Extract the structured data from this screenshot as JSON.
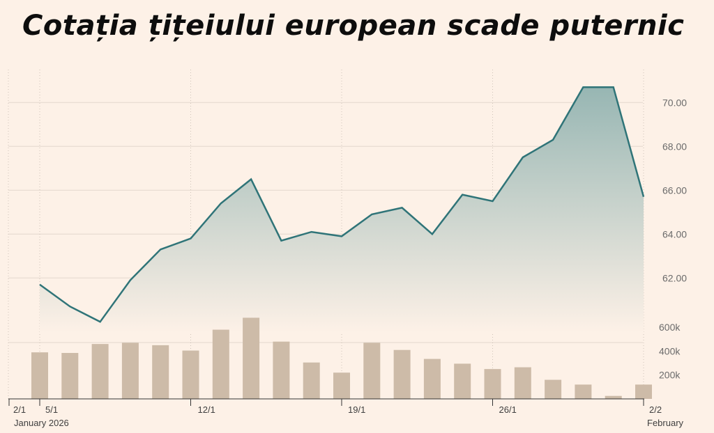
{
  "title": "Cotația țițeiului european scade puternic",
  "colors": {
    "background": "#fdf1e7",
    "line": "#2f7478",
    "area_top": "#97b6b3",
    "area_bottom": "#fdf1e7",
    "bars": "#cdbba8",
    "grid": "#e4d8cd"
  },
  "chart_data": [
    {
      "type": "area",
      "series": [
        {
          "x": [
            "5/1",
            "6/1",
            "7/1",
            "8/1",
            "9/1",
            "12/1",
            "13/1",
            "14/1",
            "15/1",
            "16/1",
            "19/1",
            "20/1",
            "21/1",
            "22/1",
            "23/1",
            "26/1",
            "27/1",
            "28/1",
            "29/1",
            "30/1",
            "2/2"
          ],
          "values": [
            61.7,
            60.7,
            60.0,
            61.9,
            63.3,
            63.8,
            65.4,
            66.5,
            63.7,
            64.1,
            63.9,
            64.9,
            65.2,
            64.0,
            65.8,
            65.5,
            67.5,
            68.3,
            70.7,
            70.7,
            65.7
          ]
        }
      ],
      "yticks": [
        "62.00",
        "64.00",
        "66.00",
        "68.00",
        "70.00"
      ],
      "ylim": [
        59.5,
        71.5
      ],
      "xticks": [
        "2/1",
        "5/1",
        "12/1",
        "19/1",
        "26/1",
        "2/2"
      ],
      "xsublabels": [
        "January 2026",
        "February"
      ],
      "grid": true
    },
    {
      "type": "bar",
      "categories": [
        "5/1",
        "6/1",
        "7/1",
        "8/1",
        "9/1",
        "12/1",
        "13/1",
        "14/1",
        "15/1",
        "16/1",
        "19/1",
        "20/1",
        "21/1",
        "22/1",
        "23/1",
        "26/1",
        "27/1",
        "28/1",
        "29/1",
        "30/1",
        "2/2"
      ],
      "values": [
        390000,
        385000,
        460000,
        470000,
        450000,
        405000,
        580000,
        680000,
        480000,
        305000,
        220000,
        470000,
        410000,
        335000,
        295000,
        250000,
        265000,
        160000,
        120000,
        25000,
        120000
      ],
      "yticks": [
        "200k",
        "400k",
        "600k"
      ],
      "ylim": [
        0,
        700000
      ]
    }
  ]
}
